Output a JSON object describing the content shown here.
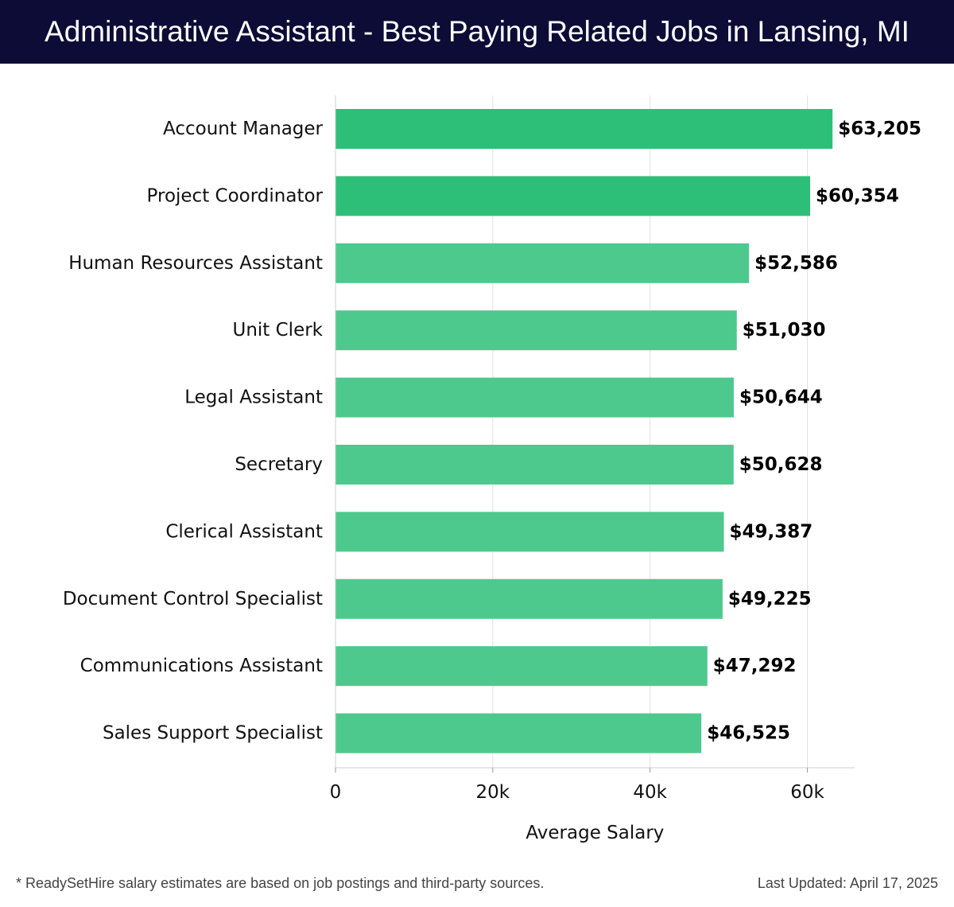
{
  "header": {
    "title": "Administrative Assistant - Best Paying Related Jobs in Lansing, MI"
  },
  "chart_data": {
    "type": "bar",
    "orientation": "horizontal",
    "title": "Administrative Assistant - Best Paying Related Jobs in Lansing, MI",
    "xlabel": "Average Salary",
    "ylabel": "",
    "xlim": [
      0,
      66000
    ],
    "xticks": [
      0,
      20000,
      40000,
      60000
    ],
    "xtick_labels": [
      "0",
      "20k",
      "40k",
      "60k"
    ],
    "grid": "vertical",
    "categories": [
      "Account Manager",
      "Project Coordinator",
      "Human Resources Assistant",
      "Unit Clerk",
      "Legal Assistant",
      "Secretary",
      "Clerical Assistant",
      "Document Control Specialist",
      "Communications Assistant",
      "Sales Support Specialist"
    ],
    "values": [
      63205,
      60354,
      52586,
      51030,
      50644,
      50628,
      49387,
      49225,
      47292,
      46525
    ],
    "value_labels": [
      "$63,205",
      "$60,354",
      "$52,586",
      "$51,030",
      "$50,644",
      "$50,628",
      "$49,387",
      "$49,225",
      "$47,292",
      "$46,525"
    ],
    "colors": {
      "top_bars": "#2dbf78",
      "other_bars": "#4ec98e",
      "grid": "#e2e2e2",
      "axis": "#cccccc"
    }
  },
  "footer": {
    "note": "* ReadySetHire salary estimates are based on job postings and third-party sources.",
    "updated": "Last Updated: April 17, 2025"
  }
}
